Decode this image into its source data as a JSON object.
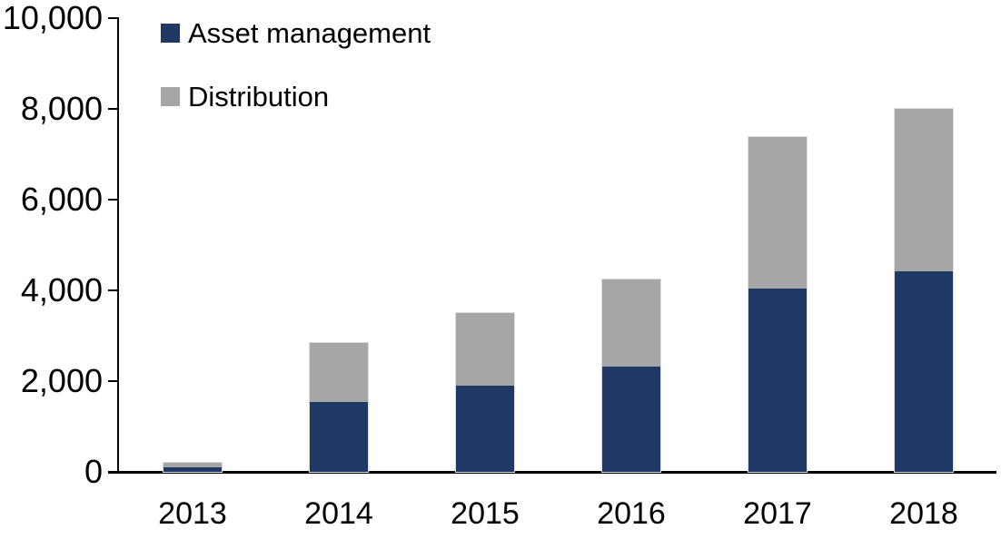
{
  "chart_data": {
    "type": "bar",
    "stacked": true,
    "title": "",
    "xlabel": "",
    "ylabel": "",
    "categories": [
      "2013",
      "2014",
      "2015",
      "2016",
      "2017",
      "2018"
    ],
    "series": [
      {
        "name": "Asset management",
        "color": "#1F3864",
        "values": [
          100,
          1550,
          1900,
          2330,
          4050,
          4420
        ]
      },
      {
        "name": "Distribution",
        "color": "#A6A6A6",
        "values": [
          100,
          1300,
          1600,
          1920,
          3330,
          3580
        ]
      }
    ],
    "ylim": [
      0,
      10000
    ],
    "ytick_values": [
      0,
      2000,
      4000,
      6000,
      8000,
      10000
    ],
    "ytick_labels": [
      "0",
      "2,000",
      "4,000",
      "6,000",
      "8,000",
      "10,000"
    ],
    "grid": false,
    "legend_position": "top-left-inside"
  },
  "colors": {
    "axis": "#000000",
    "text": "#000000",
    "background": "#FFFFFF",
    "bar_outline": "#DCDCDC"
  }
}
